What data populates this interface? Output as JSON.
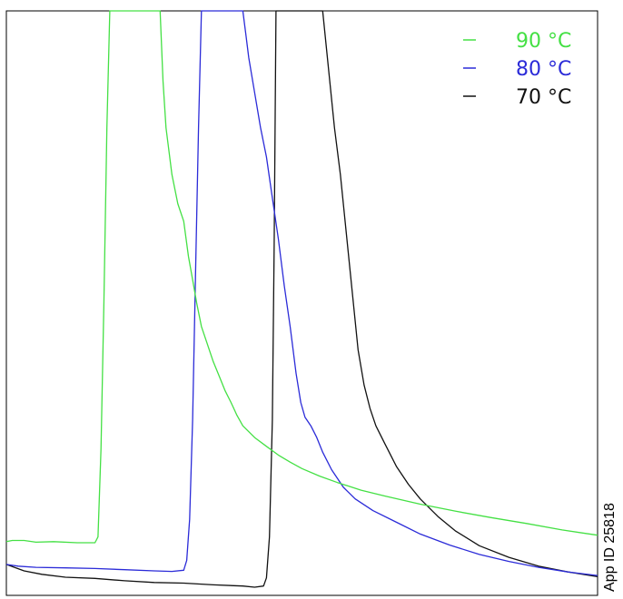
{
  "watermark": "App ID 25818",
  "chart_data": {
    "type": "line",
    "title": "",
    "xlabel": "",
    "ylabel": "",
    "grid": false,
    "legend_position": "top-right",
    "xlim": [
      0,
      100
    ],
    "ylim": [
      0,
      100
    ],
    "series": [
      {
        "name": "90 °C",
        "color": "#44e044",
        "points": [
          [
            0,
            9.2
          ],
          [
            1,
            9.4
          ],
          [
            3,
            9.4
          ],
          [
            5,
            9.1
          ],
          [
            8,
            9.2
          ],
          [
            12,
            9.0
          ],
          [
            15,
            9.0
          ],
          [
            15.5,
            10
          ],
          [
            16,
            25
          ],
          [
            16.5,
            50
          ],
          [
            17,
            80
          ],
          [
            17.5,
            100
          ],
          [
            26,
            100
          ],
          [
            26.5,
            88
          ],
          [
            27,
            80
          ],
          [
            28,
            72
          ],
          [
            29,
            67
          ],
          [
            30,
            64
          ],
          [
            30.8,
            58
          ],
          [
            31.5,
            54
          ],
          [
            32.2,
            50
          ],
          [
            33,
            46
          ],
          [
            34,
            43
          ],
          [
            35,
            40
          ],
          [
            36,
            37.5
          ],
          [
            37,
            35
          ],
          [
            38,
            33
          ],
          [
            39,
            30.8
          ],
          [
            40,
            29
          ],
          [
            42,
            27
          ],
          [
            44,
            25.5
          ],
          [
            46,
            24
          ],
          [
            48,
            22.8
          ],
          [
            50,
            21.7
          ],
          [
            53,
            20.4
          ],
          [
            56,
            19.3
          ],
          [
            60,
            18.0
          ],
          [
            64,
            17.0
          ],
          [
            70,
            15.6
          ],
          [
            76,
            14.4
          ],
          [
            82,
            13.3
          ],
          [
            88,
            12.3
          ],
          [
            94,
            11.2
          ],
          [
            100,
            10.3
          ]
        ]
      },
      {
        "name": "80 °C",
        "color": "#2b2bd8",
        "points": [
          [
            0,
            5.3
          ],
          [
            2,
            5.0
          ],
          [
            5,
            4.8
          ],
          [
            10,
            4.7
          ],
          [
            15,
            4.6
          ],
          [
            20,
            4.4
          ],
          [
            25,
            4.2
          ],
          [
            28,
            4.1
          ],
          [
            30,
            4.3
          ],
          [
            30.5,
            6
          ],
          [
            31,
            13
          ],
          [
            31.5,
            30
          ],
          [
            32,
            55
          ],
          [
            32.5,
            80
          ],
          [
            33,
            100
          ],
          [
            40,
            100
          ],
          [
            40.5,
            96
          ],
          [
            41,
            92
          ],
          [
            42,
            86
          ],
          [
            43,
            80
          ],
          [
            44,
            75
          ],
          [
            45,
            68
          ],
          [
            46,
            61
          ],
          [
            47,
            53
          ],
          [
            48,
            46
          ],
          [
            49,
            38
          ],
          [
            49.8,
            33
          ],
          [
            50.5,
            30.5
          ],
          [
            51.5,
            29
          ],
          [
            52.5,
            27
          ],
          [
            53.5,
            24.5
          ],
          [
            55,
            21.5
          ],
          [
            57,
            18.5
          ],
          [
            59,
            16.5
          ],
          [
            62,
            14.5
          ],
          [
            66,
            12.5
          ],
          [
            70,
            10.5
          ],
          [
            75,
            8.6
          ],
          [
            80,
            7.0
          ],
          [
            85,
            5.8
          ],
          [
            90,
            4.8
          ],
          [
            95,
            4.0
          ],
          [
            100,
            3.4
          ]
        ]
      },
      {
        "name": "70 °C",
        "color": "#111111",
        "points": [
          [
            0,
            5.3
          ],
          [
            3,
            4.2
          ],
          [
            6,
            3.6
          ],
          [
            10,
            3.1
          ],
          [
            15,
            2.9
          ],
          [
            20,
            2.5
          ],
          [
            25,
            2.2
          ],
          [
            30,
            2.1
          ],
          [
            35,
            1.8
          ],
          [
            40,
            1.6
          ],
          [
            42,
            1.4
          ],
          [
            43.5,
            1.6
          ],
          [
            44,
            3
          ],
          [
            44.5,
            10
          ],
          [
            45,
            30
          ],
          [
            45.3,
            60
          ],
          [
            45.6,
            100
          ],
          [
            53.5,
            100
          ],
          [
            54.5,
            90
          ],
          [
            55.5,
            80
          ],
          [
            56.5,
            72
          ],
          [
            57.5,
            62
          ],
          [
            58.5,
            52
          ],
          [
            59.5,
            42
          ],
          [
            60.5,
            36
          ],
          [
            61.5,
            32
          ],
          [
            62.5,
            29
          ],
          [
            64,
            26
          ],
          [
            66,
            22
          ],
          [
            68,
            19
          ],
          [
            70,
            16.5
          ],
          [
            73,
            13.5
          ],
          [
            76,
            11
          ],
          [
            80,
            8.5
          ],
          [
            85,
            6.5
          ],
          [
            90,
            5.0
          ],
          [
            95,
            4.0
          ],
          [
            100,
            3.2
          ]
        ]
      }
    ]
  }
}
